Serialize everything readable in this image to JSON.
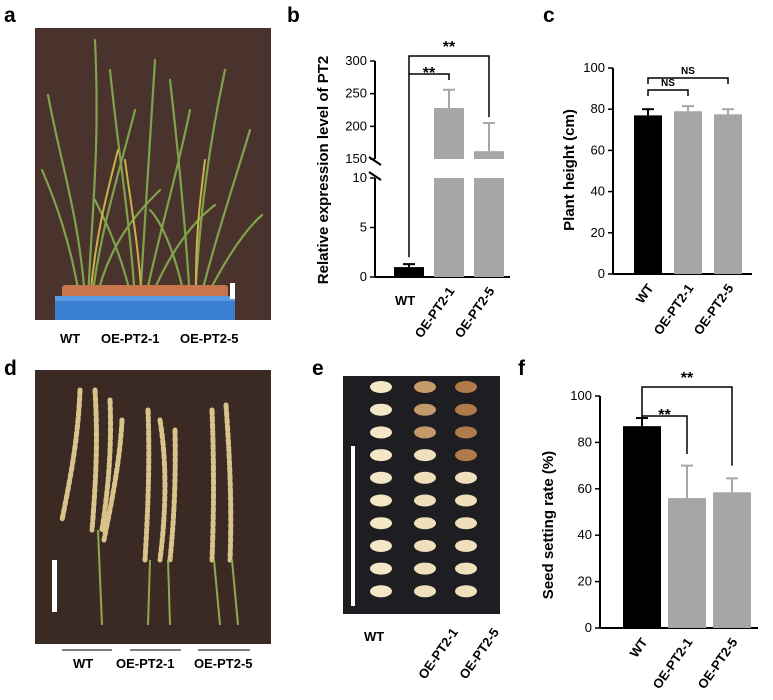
{
  "panels": {
    "a": {
      "letter": "a",
      "labels": [
        "WT",
        "OE-PT2-1",
        "OE-PT2-5"
      ]
    },
    "b": {
      "letter": "b"
    },
    "c": {
      "letter": "c"
    },
    "d": {
      "letter": "d",
      "labels": [
        "WT",
        "OE-PT2-1",
        "OE-PT2-5"
      ]
    },
    "e": {
      "letter": "e",
      "labels": [
        "WT",
        "OE-PT2-1",
        "OE-PT2-5"
      ]
    },
    "f": {
      "letter": "f"
    }
  },
  "colors": {
    "wt": "#000000",
    "oe": "#a6a6a6",
    "plant_bg": "#4a332c",
    "grain_bg": "#1e1e22",
    "panicle_bg": "#3b2a24"
  },
  "chart_data": [
    {
      "type": "bar",
      "panel": "b",
      "title": "",
      "xlabel": "",
      "ylabel": "Relative expression level of PT2",
      "categories": [
        "WT",
        "OE-PT2-1",
        "OE-PT2-5"
      ],
      "values": [
        1.0,
        228,
        162
      ],
      "errors": [
        0.3,
        28,
        43
      ],
      "axis_break": {
        "lower": [
          0,
          10
        ],
        "upper": [
          150,
          300
        ]
      },
      "yticks_lower": [
        "0",
        "5",
        "10"
      ],
      "yticks_upper": [
        "150",
        "200",
        "250",
        "300"
      ],
      "significance": [
        {
          "from": "WT",
          "to": "OE-PT2-1",
          "label": "**"
        },
        {
          "from": "WT",
          "to": "OE-PT2-5",
          "label": "**"
        }
      ]
    },
    {
      "type": "bar",
      "panel": "c",
      "title": "",
      "xlabel": "",
      "ylabel": "Plant height (cm)",
      "categories": [
        "WT",
        "OE-PT2-1",
        "OE-PT2-5"
      ],
      "values": [
        77,
        79,
        77.5
      ],
      "errors": [
        3,
        2.5,
        2.5
      ],
      "ylim": [
        0,
        100
      ],
      "yticks": [
        "0",
        "20",
        "40",
        "60",
        "80",
        "100"
      ],
      "significance": [
        {
          "from": "WT",
          "to": "OE-PT2-1",
          "label": "NS"
        },
        {
          "from": "WT",
          "to": "OE-PT2-5",
          "label": "NS"
        }
      ]
    },
    {
      "type": "bar",
      "panel": "f",
      "title": "",
      "xlabel": "",
      "ylabel": "Seed setting rate (%)",
      "categories": [
        "WT",
        "OE-PT2-1",
        "OE-PT2-5"
      ],
      "values": [
        87,
        56,
        58.5
      ],
      "errors": [
        3.5,
        14,
        6
      ],
      "ylim": [
        0,
        100
      ],
      "yticks": [
        "0",
        "20",
        "40",
        "60",
        "80",
        "100"
      ],
      "significance": [
        {
          "from": "WT",
          "to": "OE-PT2-1",
          "label": "**"
        },
        {
          "from": "WT",
          "to": "OE-PT2-5",
          "label": "**"
        }
      ]
    }
  ]
}
